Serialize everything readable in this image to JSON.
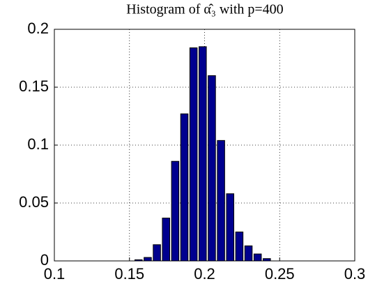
{
  "chart_data": {
    "type": "histogram",
    "title": "Histogram of α̂₃ with p=400",
    "bins": [
      0.153,
      0.1591,
      0.1652,
      0.1713,
      0.1774,
      0.1835,
      0.1896,
      0.1957,
      0.2018,
      0.2079,
      0.214,
      0.2201,
      0.2262,
      0.2323,
      0.2384,
      0.2445
    ],
    "values": [
      0.001,
      0.003,
      0.014,
      0.037,
      0.086,
      0.127,
      0.184,
      0.185,
      0.16,
      0.104,
      0.058,
      0.025,
      0.013,
      0.006,
      0.002
    ],
    "color": "#00008f",
    "xlim": [
      0.1,
      0.3
    ],
    "xticks": [
      0.1,
      0.15,
      0.2,
      0.25,
      0.3
    ],
    "ylim": [
      0,
      0.2
    ],
    "yticks": [
      0,
      0.05,
      0.1,
      0.15,
      0.2
    ],
    "grid": true
  }
}
